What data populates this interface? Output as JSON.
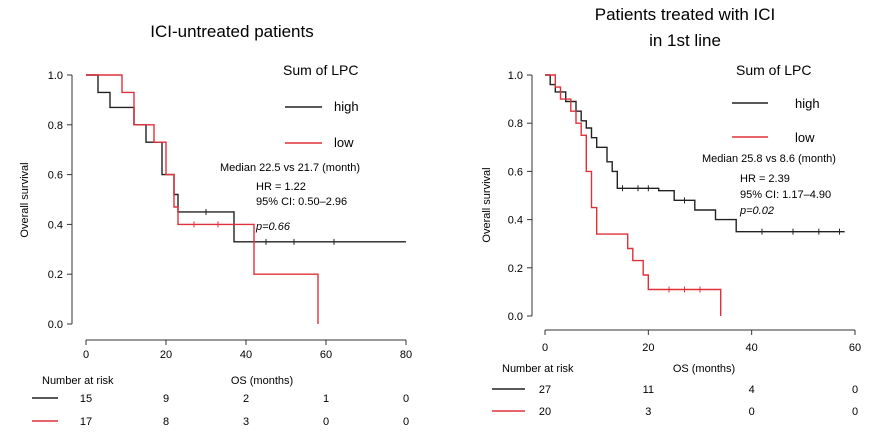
{
  "colors": {
    "high": "#222222",
    "low": "#e0303a",
    "axis": "#333333"
  },
  "chart_data": [
    {
      "type": "line",
      "title": "ICI-untreated patients",
      "subtitle": "",
      "xlabel": "OS (months)",
      "ylabel": "Overall survival",
      "xlim": [
        0,
        80
      ],
      "ylim": [
        0,
        1.0
      ],
      "xticks": [
        "0",
        "20",
        "40",
        "60",
        "80"
      ],
      "yticks": [
        "0.0",
        "0.2",
        "0.4",
        "0.6",
        "0.8",
        "1.0"
      ],
      "legend_title": "Sum of LPC",
      "series": [
        {
          "name": "high",
          "color": "#222222",
          "steps": [
            [
              0,
              1.0
            ],
            [
              3,
              1.0
            ],
            [
              3,
              0.93
            ],
            [
              6,
              0.93
            ],
            [
              6,
              0.87
            ],
            [
              12,
              0.87
            ],
            [
              12,
              0.8
            ],
            [
              15,
              0.8
            ],
            [
              15,
              0.73
            ],
            [
              19,
              0.73
            ],
            [
              19,
              0.6
            ],
            [
              22,
              0.6
            ],
            [
              22,
              0.52
            ],
            [
              23,
              0.52
            ],
            [
              23,
              0.45
            ],
            [
              37,
              0.45
            ],
            [
              37,
              0.33
            ],
            [
              80,
              0.33
            ]
          ],
          "censors": [
            [
              30,
              0.45
            ],
            [
              45,
              0.33
            ],
            [
              52,
              0.33
            ],
            [
              62,
              0.33
            ]
          ]
        },
        {
          "name": "low",
          "color": "#e0303a",
          "steps": [
            [
              0,
              1.0
            ],
            [
              9,
              1.0
            ],
            [
              9,
              0.93
            ],
            [
              12,
              0.93
            ],
            [
              12,
              0.8
            ],
            [
              17,
              0.8
            ],
            [
              17,
              0.73
            ],
            [
              20,
              0.73
            ],
            [
              20,
              0.6
            ],
            [
              22,
              0.6
            ],
            [
              22,
              0.47
            ],
            [
              23,
              0.47
            ],
            [
              23,
              0.4
            ],
            [
              42,
              0.4
            ],
            [
              42,
              0.2
            ],
            [
              58,
              0.2
            ],
            [
              58,
              0.0
            ]
          ],
          "censors": [
            [
              27,
              0.4
            ],
            [
              33,
              0.4
            ]
          ]
        }
      ],
      "stats": [
        "Median 22.5 vs 21.7 (month)",
        "HR = 1.22",
        "95% CI: 0.50–2.96",
        "p=0.66"
      ],
      "risk_table": {
        "header": "Number at risk",
        "rows": [
          {
            "name": "high",
            "values": [
              "15",
              "9",
              "2",
              "1",
              "0"
            ]
          },
          {
            "name": "low",
            "values": [
              "17",
              "8",
              "3",
              "0",
              "0"
            ]
          }
        ]
      }
    },
    {
      "type": "line",
      "title": "Patients treated with ICI",
      "subtitle": "in 1st line",
      "xlabel": "OS (months)",
      "ylabel": "Overall survival",
      "xlim": [
        0,
        60
      ],
      "ylim": [
        0,
        1.0
      ],
      "xticks": [
        "0",
        "20",
        "40",
        "60"
      ],
      "yticks": [
        "0.0",
        "0.2",
        "0.4",
        "0.6",
        "0.8",
        "1.0"
      ],
      "legend_title": "Sum of LPC",
      "series": [
        {
          "name": "high",
          "color": "#222222",
          "steps": [
            [
              0,
              1.0
            ],
            [
              1,
              1.0
            ],
            [
              1,
              0.96
            ],
            [
              2,
              0.96
            ],
            [
              2,
              0.93
            ],
            [
              4,
              0.93
            ],
            [
              4,
              0.89
            ],
            [
              6,
              0.89
            ],
            [
              6,
              0.85
            ],
            [
              7,
              0.85
            ],
            [
              7,
              0.81
            ],
            [
              8,
              0.81
            ],
            [
              8,
              0.78
            ],
            [
              9,
              0.78
            ],
            [
              9,
              0.74
            ],
            [
              10,
              0.74
            ],
            [
              10,
              0.7
            ],
            [
              12,
              0.7
            ],
            [
              12,
              0.64
            ],
            [
              13,
              0.64
            ],
            [
              13,
              0.6
            ],
            [
              14,
              0.6
            ],
            [
              14,
              0.53
            ],
            [
              22,
              0.53
            ],
            [
              22,
              0.52
            ],
            [
              25,
              0.52
            ],
            [
              25,
              0.48
            ],
            [
              29,
              0.48
            ],
            [
              29,
              0.44
            ],
            [
              33,
              0.44
            ],
            [
              33,
              0.4
            ],
            [
              37,
              0.4
            ],
            [
              37,
              0.35
            ],
            [
              58,
              0.35
            ]
          ],
          "censors": [
            [
              15,
              0.53
            ],
            [
              18,
              0.53
            ],
            [
              20,
              0.53
            ],
            [
              27,
              0.48
            ],
            [
              42,
              0.35
            ],
            [
              48,
              0.35
            ],
            [
              53,
              0.35
            ],
            [
              57,
              0.35
            ]
          ]
        },
        {
          "name": "low",
          "color": "#e0303a",
          "steps": [
            [
              0,
              1.0
            ],
            [
              2,
              1.0
            ],
            [
              2,
              0.95
            ],
            [
              3,
              0.95
            ],
            [
              3,
              0.9
            ],
            [
              5,
              0.9
            ],
            [
              5,
              0.85
            ],
            [
              6,
              0.85
            ],
            [
              6,
              0.8
            ],
            [
              7,
              0.8
            ],
            [
              7,
              0.75
            ],
            [
              8,
              0.75
            ],
            [
              8,
              0.6
            ],
            [
              9,
              0.6
            ],
            [
              9,
              0.45
            ],
            [
              10,
              0.45
            ],
            [
              10,
              0.34
            ],
            [
              16,
              0.34
            ],
            [
              16,
              0.28
            ],
            [
              17,
              0.28
            ],
            [
              17,
              0.23
            ],
            [
              19,
              0.23
            ],
            [
              19,
              0.17
            ],
            [
              20,
              0.17
            ],
            [
              20,
              0.11
            ],
            [
              34,
              0.11
            ],
            [
              34,
              0.0
            ]
          ],
          "censors": [
            [
              24,
              0.11
            ],
            [
              27,
              0.11
            ],
            [
              30,
              0.11
            ]
          ]
        }
      ],
      "stats": [
        "Median 25.8 vs 8.6 (month)",
        "HR = 2.39",
        "95% CI: 1.17–4.90",
        "p=0.02"
      ],
      "risk_table": {
        "header": "Number at risk",
        "rows": [
          {
            "name": "high",
            "values": [
              "27",
              "11",
              "4",
              "0"
            ]
          },
          {
            "name": "low",
            "values": [
              "20",
              "3",
              "0",
              "0"
            ]
          }
        ]
      }
    }
  ]
}
